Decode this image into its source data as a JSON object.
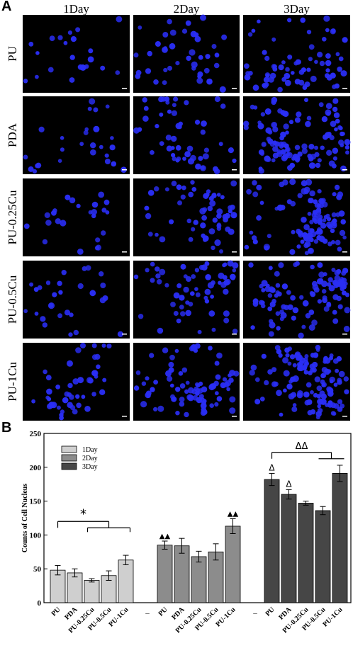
{
  "panel_a": {
    "label": "A",
    "columns": [
      "1Day",
      "2Day",
      "3Day"
    ],
    "rows": [
      "PU",
      "PDA",
      "PU-0.25Cu",
      "PU-0.5Cu",
      "PU-1Cu"
    ],
    "colors": {
      "background": "#000000",
      "nucleus": "#2a2ef5",
      "scale_bar": "#ffffff"
    }
  },
  "panel_b": {
    "label": "B"
  },
  "chart_data": {
    "type": "bar",
    "ylabel": "Counts of Cell Nucleus",
    "ylim": [
      0,
      250
    ],
    "yticks": [
      0,
      50,
      100,
      150,
      200,
      250
    ],
    "legend": {
      "placement": "top-left",
      "entries": [
        {
          "name": "1Day",
          "color": "#cfcfcf"
        },
        {
          "name": "2Day",
          "color": "#8c8c8c"
        },
        {
          "name": "3Day",
          "color": "#464646"
        }
      ]
    },
    "groups": [
      {
        "name": "1Day",
        "color": "#cfcfcf",
        "categories": [
          "PU",
          "PDA",
          "PU-0.25Cu",
          "PU-0.5Cu",
          "PU-1Cu"
        ],
        "values": [
          48,
          44,
          33,
          40,
          63
        ],
        "errors": [
          7,
          6,
          2.5,
          7,
          7
        ],
        "markers": [
          "",
          "",
          "",
          "",
          ""
        ]
      },
      {
        "name": "2Day",
        "color": "#8c8c8c",
        "categories": [
          "PU",
          "PDA",
          "PU-0.25Cu",
          "PU-0.5Cu",
          "PU-1Cu"
        ],
        "values": [
          85,
          84,
          68,
          75,
          113
        ],
        "errors": [
          6,
          11,
          8,
          12,
          11
        ],
        "markers": [
          "▲▲",
          "",
          "",
          "",
          "▲▲"
        ]
      },
      {
        "name": "3Day",
        "color": "#464646",
        "categories": [
          "PU",
          "PDA",
          "PU-0.25Cu",
          "PU-0.5Cu",
          "PU-1Cu"
        ],
        "values": [
          182,
          160,
          147,
          136,
          191
        ],
        "errors": [
          9,
          7,
          3,
          6,
          12
        ],
        "markers": [
          "Δ",
          "Δ",
          "",
          "",
          ""
        ]
      }
    ],
    "separators": [
      "–",
      "–"
    ],
    "significance": [
      {
        "group": 0,
        "text": "*",
        "from": 0,
        "to_range": [
          2,
          4
        ],
        "y": 120
      },
      {
        "group": 2,
        "text": "ΔΔ",
        "from": 0,
        "to_range": [
          3,
          4
        ],
        "y": 222
      }
    ]
  }
}
